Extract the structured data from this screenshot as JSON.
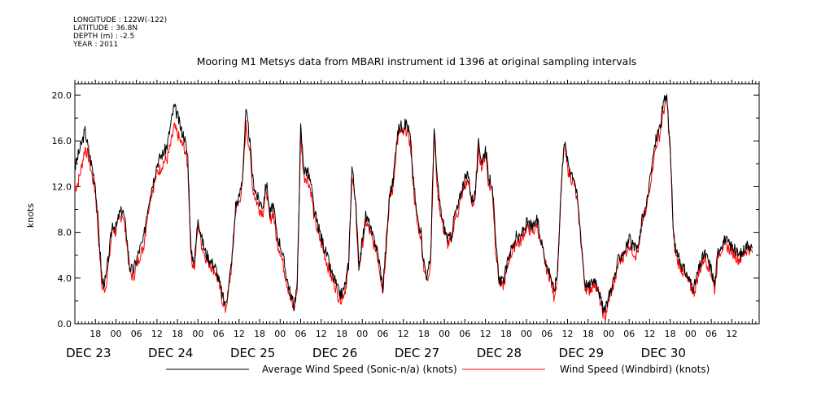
{
  "header": {
    "longitude": "LONGITUDE : 122W(-122)",
    "latitude": "LATITUDE : 36.8N",
    "depth": "DEPTH (m) : -2.5",
    "year": "YEAR : 2011"
  },
  "chart_data": {
    "type": "line",
    "title": "Mooring M1 Metsys data from MBARI instrument id 1396 at original sampling intervals",
    "ylabel": "knots",
    "xlabel": "",
    "ylim": [
      0,
      21
    ],
    "xlim_hours": [
      0,
      200
    ],
    "y_ticks": [
      "0.0",
      "4.0",
      "8.0",
      "12.0",
      "16.0",
      "20.0"
    ],
    "x_hour_ticks": [
      {
        "h": 6,
        "label": "18"
      },
      {
        "h": 12,
        "label": "00"
      },
      {
        "h": 18,
        "label": "06"
      },
      {
        "h": 24,
        "label": "12"
      },
      {
        "h": 30,
        "label": "18"
      },
      {
        "h": 36,
        "label": "00"
      },
      {
        "h": 42,
        "label": "06"
      },
      {
        "h": 48,
        "label": "12"
      },
      {
        "h": 54,
        "label": "18"
      },
      {
        "h": 60,
        "label": "00"
      },
      {
        "h": 66,
        "label": "06"
      },
      {
        "h": 72,
        "label": "12"
      },
      {
        "h": 78,
        "label": "18"
      },
      {
        "h": 84,
        "label": "00"
      },
      {
        "h": 90,
        "label": "06"
      },
      {
        "h": 96,
        "label": "12"
      },
      {
        "h": 102,
        "label": "18"
      },
      {
        "h": 108,
        "label": "00"
      },
      {
        "h": 114,
        "label": "06"
      },
      {
        "h": 120,
        "label": "12"
      },
      {
        "h": 126,
        "label": "18"
      },
      {
        "h": 132,
        "label": "00"
      },
      {
        "h": 138,
        "label": "06"
      },
      {
        "h": 144,
        "label": "12"
      },
      {
        "h": 150,
        "label": "18"
      },
      {
        "h": 156,
        "label": "00"
      },
      {
        "h": 162,
        "label": "06"
      },
      {
        "h": 168,
        "label": "12"
      },
      {
        "h": 174,
        "label": "18"
      },
      {
        "h": 180,
        "label": "00"
      },
      {
        "h": 186,
        "label": "06"
      },
      {
        "h": 192,
        "label": "12"
      }
    ],
    "day_labels": [
      {
        "h": 4,
        "label": "DEC 23"
      },
      {
        "h": 28,
        "label": "DEC 24"
      },
      {
        "h": 52,
        "label": "DEC 25"
      },
      {
        "h": 76,
        "label": "DEC 26"
      },
      {
        "h": 100,
        "label": "DEC 27"
      },
      {
        "h": 124,
        "label": "DEC 28"
      },
      {
        "h": 148,
        "label": "DEC 29"
      },
      {
        "h": 172,
        "label": "DEC 30"
      }
    ],
    "x_hours_keypoints": [
      0,
      1,
      2,
      3,
      4,
      5,
      6,
      7,
      8,
      9,
      10,
      11,
      12,
      13,
      14,
      15,
      16,
      17,
      18,
      19,
      20,
      21,
      22,
      23,
      24,
      25,
      26,
      27,
      28,
      29,
      30,
      31,
      32,
      33,
      34,
      35,
      36,
      37,
      38,
      39,
      40,
      41,
      42,
      43,
      44,
      45,
      46,
      47,
      48,
      49,
      50,
      51,
      52,
      53,
      54,
      55,
      56,
      57,
      58,
      59,
      60,
      61,
      62,
      63,
      64,
      65,
      66,
      67,
      68,
      69,
      70,
      71,
      72,
      73,
      74,
      75,
      76,
      77,
      78,
      79,
      80,
      81,
      82,
      83,
      84,
      85,
      86,
      87,
      88,
      89,
      90,
      91,
      92,
      93,
      94,
      95,
      96,
      97,
      98,
      99,
      100,
      101,
      102,
      103,
      104,
      105,
      106,
      107,
      108,
      109,
      110,
      111,
      112,
      113,
      114,
      115,
      116,
      117,
      118,
      119,
      120,
      121,
      122,
      123,
      124,
      125,
      126,
      127,
      128,
      129,
      130,
      131,
      132,
      133,
      134,
      135,
      136,
      137,
      138,
      139,
      140,
      141,
      142,
      143,
      144,
      145,
      146,
      147,
      148,
      149,
      150,
      151,
      152,
      153,
      154,
      155,
      156,
      157,
      158,
      159,
      160,
      161,
      162,
      163,
      164,
      165,
      166,
      167,
      168,
      169,
      170,
      171,
      172,
      173,
      174,
      175,
      176,
      177,
      178,
      179,
      180,
      181,
      182,
      183,
      184,
      185,
      186,
      187,
      188,
      189,
      190,
      191,
      192,
      193,
      194,
      195,
      196,
      197,
      198,
      199,
      200
    ],
    "series": [
      {
        "name": "Average Wind Speed (Sonic-n/a) (knots)",
        "color": "#000000",
        "values": [
          13.6,
          14.8,
          15.8,
          16.9,
          15.2,
          13.8,
          12.2,
          8.0,
          3.6,
          3.8,
          6.2,
          8.8,
          8.4,
          9.6,
          10.0,
          8.2,
          5.0,
          4.6,
          5.6,
          6.6,
          7.2,
          9.6,
          11.4,
          12.6,
          14.0,
          14.6,
          15.0,
          15.6,
          17.4,
          19.0,
          18.2,
          17.0,
          16.4,
          14.6,
          6.0,
          5.6,
          9.4,
          7.6,
          6.4,
          5.8,
          5.4,
          5.0,
          4.0,
          2.6,
          1.6,
          3.4,
          6.0,
          10.4,
          11.0,
          12.8,
          18.6,
          16.4,
          12.6,
          11.4,
          10.6,
          10.4,
          12.4,
          9.6,
          10.4,
          7.8,
          7.0,
          5.6,
          4.0,
          2.6,
          1.6,
          3.4,
          17.2,
          13.4,
          13.4,
          12.2,
          9.8,
          8.6,
          7.6,
          6.6,
          5.6,
          4.4,
          3.8,
          2.8,
          2.6,
          3.4,
          5.2,
          13.8,
          11.0,
          5.2,
          7.2,
          9.4,
          8.8,
          7.6,
          7.0,
          5.4,
          3.2,
          7.2,
          11.4,
          12.4,
          16.2,
          17.4,
          17.2,
          17.6,
          16.4,
          12.4,
          9.4,
          8.4,
          5.4,
          4.0,
          6.0,
          17.2,
          12.2,
          9.8,
          8.4,
          7.4,
          7.6,
          9.6,
          10.2,
          11.8,
          12.6,
          13.0,
          10.8,
          11.4,
          15.8,
          14.2,
          15.4,
          12.6,
          12.4,
          7.0,
          4.0,
          3.6,
          4.6,
          6.2,
          6.8,
          7.6,
          7.4,
          8.2,
          8.8,
          8.6,
          8.4,
          9.2,
          7.6,
          6.4,
          5.0,
          4.4,
          2.8,
          4.4,
          11.2,
          16.2,
          14.2,
          13.4,
          12.8,
          10.6,
          7.4,
          3.8,
          3.2,
          3.6,
          4.0,
          3.2,
          1.6,
          1.0,
          2.4,
          3.4,
          4.4,
          5.8,
          6.2,
          6.6,
          7.4,
          6.8,
          6.4,
          7.2,
          9.6,
          10.2,
          12.4,
          14.6,
          16.4,
          17.2,
          19.2,
          20.0,
          15.4,
          7.6,
          6.0,
          5.4,
          4.8,
          4.2,
          3.6,
          3.2,
          4.4,
          5.4,
          6.2,
          5.6,
          4.8,
          3.4,
          6.4,
          7.0,
          7.4,
          7.0,
          6.8,
          6.4,
          6.0,
          6.2,
          6.8,
          7.0,
          6.6
        ]
      },
      {
        "name": "Wind Speed (Windbird) (knots)",
        "color": "#ff0000",
        "values": [
          11.8,
          12.4,
          13.8,
          15.4,
          14.6,
          13.0,
          11.6,
          7.2,
          3.0,
          3.2,
          5.6,
          8.4,
          8.0,
          9.2,
          9.6,
          7.6,
          4.6,
          4.0,
          5.0,
          6.0,
          6.6,
          9.0,
          11.0,
          12.0,
          13.2,
          13.6,
          14.2,
          14.4,
          15.6,
          17.2,
          16.6,
          15.8,
          15.4,
          13.8,
          5.6,
          5.0,
          8.8,
          7.0,
          6.0,
          5.4,
          5.0,
          4.6,
          3.6,
          2.2,
          1.2,
          3.0,
          5.6,
          10.0,
          10.6,
          12.2,
          17.4,
          15.4,
          11.8,
          10.8,
          10.0,
          9.8,
          11.8,
          9.0,
          9.8,
          7.2,
          6.4,
          5.0,
          3.6,
          2.2,
          1.2,
          3.0,
          16.4,
          12.8,
          12.8,
          11.6,
          9.2,
          8.0,
          7.0,
          6.0,
          5.0,
          4.0,
          3.4,
          2.4,
          2.2,
          3.0,
          4.8,
          13.2,
          10.4,
          4.8,
          6.8,
          9.0,
          8.2,
          7.2,
          6.6,
          5.0,
          2.8,
          6.8,
          11.0,
          11.8,
          15.6,
          16.8,
          16.6,
          17.0,
          15.8,
          11.8,
          8.8,
          7.8,
          5.0,
          3.6,
          5.6,
          16.6,
          11.6,
          9.4,
          8.0,
          7.0,
          7.2,
          9.2,
          9.8,
          11.2,
          12.0,
          12.6,
          10.4,
          11.0,
          15.2,
          13.6,
          15.0,
          12.0,
          11.8,
          6.6,
          3.6,
          3.2,
          4.2,
          5.8,
          6.4,
          7.2,
          7.0,
          7.8,
          8.4,
          8.2,
          8.0,
          8.8,
          7.2,
          6.0,
          4.6,
          4.0,
          2.4,
          4.0,
          10.8,
          15.8,
          13.6,
          12.8,
          12.2,
          10.2,
          7.0,
          3.4,
          2.8,
          3.2,
          3.6,
          2.8,
          1.2,
          0.6,
          2.0,
          3.0,
          4.0,
          5.4,
          5.8,
          6.2,
          7.0,
          6.4,
          6.0,
          6.8,
          9.2,
          9.8,
          12.0,
          14.0,
          15.8,
          16.6,
          18.6,
          19.6,
          15.0,
          7.2,
          5.6,
          5.0,
          4.4,
          3.8,
          3.2,
          2.8,
          4.0,
          5.0,
          5.8,
          5.2,
          4.4,
          3.0,
          6.0,
          6.6,
          7.0,
          6.6,
          6.4,
          6.0,
          5.6,
          5.8,
          6.4,
          6.6,
          6.2
        ]
      }
    ],
    "legend": [
      {
        "label": "Average Wind Speed (Sonic-n/a) (knots)",
        "color": "#000000"
      },
      {
        "label": "Wind Speed (Windbird) (knots)",
        "color": "#ff0000"
      }
    ],
    "legend_placement": "bottom",
    "grid": false
  }
}
